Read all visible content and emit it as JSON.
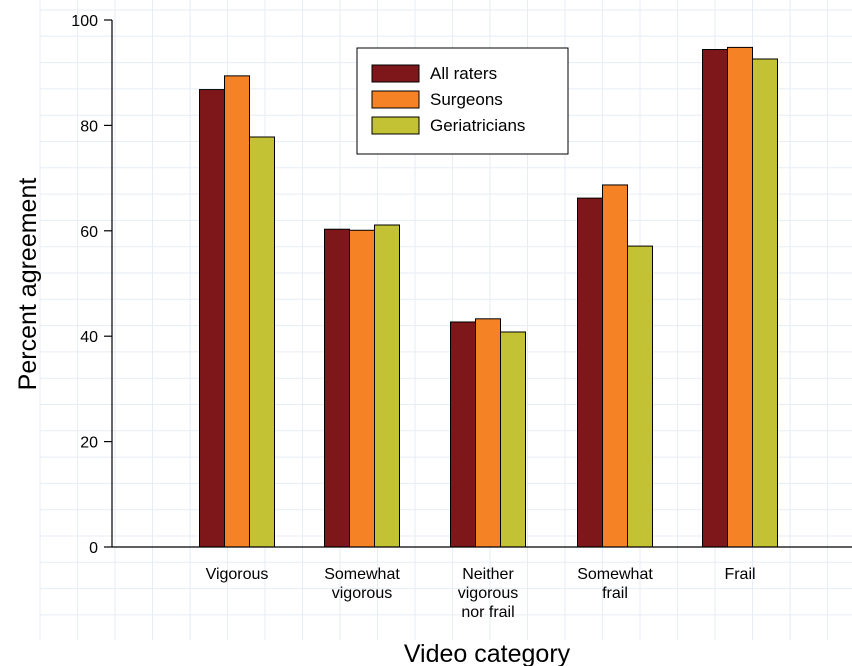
{
  "chart_data": {
    "type": "bar",
    "title": "",
    "xlabel": "Video category",
    "ylabel": "Percent agreement",
    "ylim": [
      0,
      100
    ],
    "yticks": [
      0,
      20,
      40,
      60,
      80,
      100
    ],
    "grid": true,
    "legend_position": "top-center",
    "categories": [
      [
        "Vigorous"
      ],
      [
        "Somewhat",
        "vigorous"
      ],
      [
        "Neither",
        "vigorous",
        "nor frail"
      ],
      [
        "Somewhat",
        "frail"
      ],
      [
        "Frail"
      ]
    ],
    "series": [
      {
        "name": "All raters",
        "color": "#7d1719",
        "values": [
          86.8,
          60.3,
          42.7,
          66.2,
          94.4
        ]
      },
      {
        "name": "Surgeons",
        "color": "#f58325",
        "values": [
          89.4,
          60.1,
          43.3,
          68.7,
          94.8
        ]
      },
      {
        "name": "Geriatricians",
        "color": "#c3c234",
        "values": [
          77.8,
          61.1,
          40.8,
          57.1,
          92.6
        ]
      }
    ]
  }
}
